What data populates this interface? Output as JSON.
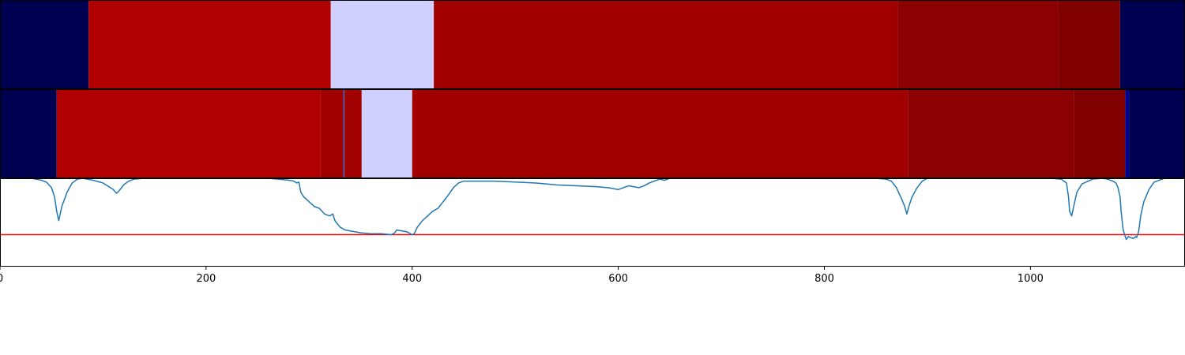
{
  "chart_data": [
    {
      "type": "heatmap",
      "xlim": [
        0,
        1150
      ],
      "segments": [
        {
          "x0": 0,
          "x1": 86,
          "color": "#000050"
        },
        {
          "x0": 86,
          "x1": 321,
          "color": "#b00000"
        },
        {
          "x0": 321,
          "x1": 421,
          "color": "#d0d0ff"
        },
        {
          "x0": 421,
          "x1": 871,
          "color": "#a00000"
        },
        {
          "x0": 871,
          "x1": 1027,
          "color": "#8b0000"
        },
        {
          "x0": 1027,
          "x1": 1087,
          "color": "#800000"
        },
        {
          "x0": 1087,
          "x1": 1150,
          "color": "#000050"
        }
      ]
    },
    {
      "type": "heatmap",
      "xlim": [
        0,
        1150
      ],
      "segments": [
        {
          "x0": 0,
          "x1": 55,
          "color": "#000050"
        },
        {
          "x0": 55,
          "x1": 311,
          "color": "#b00000"
        },
        {
          "x0": 311,
          "x1": 333,
          "color": "#a00000"
        },
        {
          "x0": 333,
          "x1": 334.5,
          "color": "#404090"
        },
        {
          "x0": 334.5,
          "x1": 351,
          "color": "#a00000"
        },
        {
          "x0": 351,
          "x1": 400,
          "color": "#d0d0ff"
        },
        {
          "x0": 400,
          "x1": 881,
          "color": "#a00000"
        },
        {
          "x0": 881,
          "x1": 1042,
          "color": "#8b0000"
        },
        {
          "x0": 1042,
          "x1": 1092,
          "color": "#800000"
        },
        {
          "x0": 1092,
          "x1": 1096,
          "color": "#000090"
        },
        {
          "x0": 1096,
          "x1": 1150,
          "color": "#000050"
        }
      ]
    },
    {
      "type": "line",
      "xlim": [
        0,
        1150
      ],
      "ylim": [
        0.06,
        1.0
      ],
      "xticks": [
        0,
        200,
        400,
        600,
        800,
        1000
      ],
      "xtick_labels": [
        "0",
        "200",
        "400",
        "600",
        "800",
        "1000"
      ],
      "threshold": 0.4,
      "threshold_color": "#ff0000",
      "line_color": "#1f77b4",
      "series": [
        {
          "x": [
            0,
            30,
            40,
            45,
            50,
            53,
            55,
            57,
            60,
            65,
            70,
            75,
            80,
            90,
            100,
            110,
            113,
            115,
            118,
            120,
            125,
            130,
            140,
            150,
            160,
            180,
            200,
            220,
            240,
            260,
            280,
            285,
            288,
            290,
            292,
            295,
            300,
            305,
            310,
            315,
            320,
            323,
            325,
            330,
            335,
            340,
            345,
            350,
            360,
            370,
            380,
            383,
            385,
            390,
            395,
            400,
            402,
            405,
            410,
            415,
            420,
            425,
            430,
            435,
            440,
            445,
            450,
            460,
            480,
            500,
            520,
            530,
            540,
            560,
            580,
            590,
            600,
            610,
            620,
            625,
            630,
            635,
            640,
            645,
            650,
            660,
            680,
            700,
            750,
            800,
            850,
            860,
            865,
            870,
            872,
            875,
            878,
            880,
            882,
            885,
            890,
            895,
            900,
            930,
            960,
            1000,
            1020,
            1030,
            1035,
            1037,
            1038,
            1040,
            1042,
            1045,
            1050,
            1060,
            1070,
            1075,
            1080,
            1083,
            1085,
            1087,
            1088,
            1090,
            1092,
            1093,
            1095,
            1097,
            1100,
            1102,
            1103,
            1105,
            1107,
            1110,
            1115,
            1120,
            1130,
            1150
          ],
          "y": [
            1.0,
            1.0,
            0.98,
            0.96,
            0.9,
            0.8,
            0.65,
            0.55,
            0.7,
            0.85,
            0.95,
            0.99,
            1.0,
            0.98,
            0.95,
            0.88,
            0.84,
            0.86,
            0.9,
            0.93,
            0.97,
            0.99,
            1.0,
            1.0,
            1.0,
            1.0,
            1.0,
            1.0,
            1.0,
            1.0,
            0.98,
            0.97,
            0.95,
            0.96,
            0.85,
            0.8,
            0.75,
            0.7,
            0.68,
            0.62,
            0.6,
            0.62,
            0.55,
            0.48,
            0.45,
            0.44,
            0.43,
            0.42,
            0.41,
            0.41,
            0.4,
            0.42,
            0.45,
            0.44,
            0.43,
            0.4,
            0.41,
            0.48,
            0.55,
            0.6,
            0.65,
            0.68,
            0.75,
            0.82,
            0.9,
            0.95,
            0.97,
            0.97,
            0.97,
            0.96,
            0.95,
            0.94,
            0.93,
            0.92,
            0.91,
            0.9,
            0.88,
            0.92,
            0.9,
            0.92,
            0.95,
            0.97,
            0.99,
            0.98,
            1.0,
            1.0,
            1.0,
            1.0,
            1.0,
            1.0,
            1.0,
            0.99,
            0.97,
            0.9,
            0.85,
            0.78,
            0.7,
            0.62,
            0.7,
            0.8,
            0.9,
            0.97,
            1.0,
            1.0,
            1.0,
            1.0,
            1.0,
            0.99,
            0.95,
            0.8,
            0.65,
            0.6,
            0.7,
            0.85,
            0.94,
            0.99,
            1.0,
            0.99,
            0.97,
            0.95,
            0.9,
            0.8,
            0.65,
            0.45,
            0.38,
            0.35,
            0.38,
            0.37,
            0.36,
            0.38,
            0.37,
            0.43,
            0.6,
            0.75,
            0.88,
            0.96,
            1.0,
            1.0
          ]
        }
      ]
    }
  ]
}
